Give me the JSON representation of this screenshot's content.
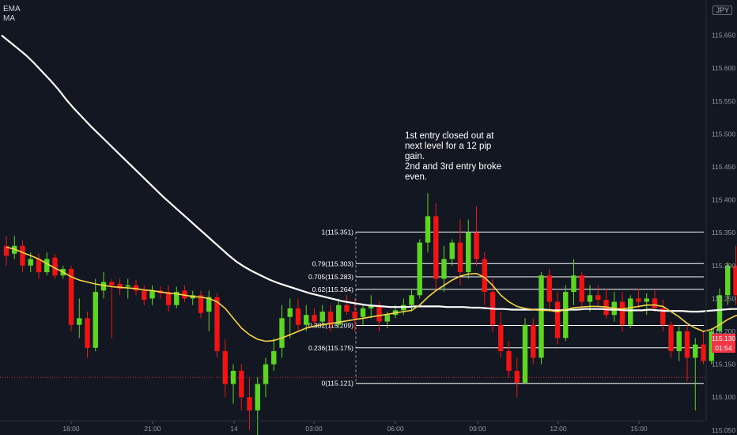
{
  "legend": {
    "ema_label": "EMA",
    "ma_label": "MA"
  },
  "currency": "JPY",
  "annotation": {
    "lines": [
      "1st entry closed out at",
      "next level for a 12 pip",
      "gain.",
      "2nd and 3rd entry broke",
      "even."
    ]
  },
  "price_tag": {
    "price": "115.130",
    "countdown": "01:54",
    "color": "#f23645"
  },
  "colors": {
    "background": "#131722",
    "up": "#5cd623",
    "down": "#f01515",
    "ema": "#ffffff",
    "ma": "#f5d547",
    "fib": "#ffffff"
  },
  "chart_data": {
    "type": "candlestick",
    "x_axis": {
      "ticks": [
        "18:00",
        "21:00",
        "14",
        "03:00",
        "06:00",
        "09:00",
        "12:00",
        "15:00"
      ]
    },
    "y_axis": {
      "range": [
        115.0,
        115.7
      ],
      "ticks": [
        "115.050",
        "115.100",
        "115.150",
        "115.200",
        "115.250",
        "115.300",
        "115.350",
        "115.400",
        "115.450",
        "115.500",
        "115.550",
        "115.600",
        "115.650"
      ]
    },
    "fib_levels": [
      {
        "ratio": "1",
        "price": 115.351,
        "label": "1(115.351)"
      },
      {
        "ratio": "0.79",
        "price": 115.303,
        "label": "0.79(115.303)"
      },
      {
        "ratio": "0.705",
        "price": 115.283,
        "label": "0.705(115.283)"
      },
      {
        "ratio": "0.62",
        "price": 115.264,
        "label": "0.62(115.264)"
      },
      {
        "ratio": "0.382",
        "price": 115.209,
        "label": "0.382(115.209)"
      },
      {
        "ratio": "0.236",
        "price": 115.175,
        "label": "0.236(115.175)"
      },
      {
        "ratio": "0",
        "price": 115.121,
        "label": "0(115.121)"
      }
    ],
    "candles": [
      {
        "o": 115.33,
        "h": 115.345,
        "l": 115.3,
        "c": 115.315
      },
      {
        "o": 115.318,
        "h": 115.345,
        "l": 115.31,
        "c": 115.33
      },
      {
        "o": 115.33,
        "h": 115.338,
        "l": 115.29,
        "c": 115.3
      },
      {
        "o": 115.3,
        "h": 115.32,
        "l": 115.29,
        "c": 115.31
      },
      {
        "o": 115.31,
        "h": 115.318,
        "l": 115.28,
        "c": 115.29
      },
      {
        "o": 115.29,
        "h": 115.32,
        "l": 115.285,
        "c": 115.31
      },
      {
        "o": 115.312,
        "h": 115.318,
        "l": 115.28,
        "c": 115.285
      },
      {
        "o": 115.285,
        "h": 115.3,
        "l": 115.28,
        "c": 115.295
      },
      {
        "o": 115.295,
        "h": 115.3,
        "l": 115.2,
        "c": 115.21
      },
      {
        "o": 115.21,
        "h": 115.25,
        "l": 115.19,
        "c": 115.22
      },
      {
        "o": 115.22,
        "h": 115.23,
        "l": 115.16,
        "c": 115.175
      },
      {
        "o": 115.175,
        "h": 115.28,
        "l": 115.17,
        "c": 115.26
      },
      {
        "o": 115.262,
        "h": 115.29,
        "l": 115.25,
        "c": 115.275
      },
      {
        "o": 115.275,
        "h": 115.28,
        "l": 115.19,
        "c": 115.27
      },
      {
        "o": 115.272,
        "h": 115.28,
        "l": 115.255,
        "c": 115.265
      },
      {
        "o": 115.268,
        "h": 115.28,
        "l": 115.25,
        "c": 115.27
      },
      {
        "o": 115.27,
        "h": 115.278,
        "l": 115.255,
        "c": 115.262
      },
      {
        "o": 115.262,
        "h": 115.27,
        "l": 115.24,
        "c": 115.248
      },
      {
        "o": 115.25,
        "h": 115.27,
        "l": 115.24,
        "c": 115.262
      },
      {
        "o": 115.262,
        "h": 115.268,
        "l": 115.25,
        "c": 115.258
      },
      {
        "o": 115.26,
        "h": 115.27,
        "l": 115.23,
        "c": 115.24
      },
      {
        "o": 115.24,
        "h": 115.268,
        "l": 115.235,
        "c": 115.26
      },
      {
        "o": 115.262,
        "h": 115.27,
        "l": 115.245,
        "c": 115.25
      },
      {
        "o": 115.25,
        "h": 115.262,
        "l": 115.24,
        "c": 115.255
      },
      {
        "o": 115.255,
        "h": 115.262,
        "l": 115.22,
        "c": 115.228
      },
      {
        "o": 115.23,
        "h": 115.262,
        "l": 115.2,
        "c": 115.252
      },
      {
        "o": 115.252,
        "h": 115.258,
        "l": 115.16,
        "c": 115.17
      },
      {
        "o": 115.17,
        "h": 115.188,
        "l": 115.1,
        "c": 115.12
      },
      {
        "o": 115.12,
        "h": 115.15,
        "l": 115.09,
        "c": 115.14
      },
      {
        "o": 115.14,
        "h": 115.15,
        "l": 115.08,
        "c": 115.1
      },
      {
        "o": 115.1,
        "h": 115.13,
        "l": 115.05,
        "c": 115.08
      },
      {
        "o": 115.08,
        "h": 115.13,
        "l": 115.04,
        "c": 115.12
      },
      {
        "o": 115.12,
        "h": 115.16,
        "l": 115.1,
        "c": 115.15
      },
      {
        "o": 115.15,
        "h": 115.19,
        "l": 115.14,
        "c": 115.17
      },
      {
        "o": 115.175,
        "h": 115.24,
        "l": 115.16,
        "c": 115.22
      },
      {
        "o": 115.222,
        "h": 115.25,
        "l": 115.19,
        "c": 115.235
      },
      {
        "o": 115.235,
        "h": 115.25,
        "l": 115.2,
        "c": 115.21
      },
      {
        "o": 115.21,
        "h": 115.24,
        "l": 115.2,
        "c": 115.225
      },
      {
        "o": 115.225,
        "h": 115.235,
        "l": 115.21,
        "c": 115.215
      },
      {
        "o": 115.215,
        "h": 115.24,
        "l": 115.21,
        "c": 115.23
      },
      {
        "o": 115.23,
        "h": 115.24,
        "l": 115.2,
        "c": 115.21
      },
      {
        "o": 115.21,
        "h": 115.25,
        "l": 115.205,
        "c": 115.24
      },
      {
        "o": 115.24,
        "h": 115.255,
        "l": 115.225,
        "c": 115.23
      },
      {
        "o": 115.23,
        "h": 115.25,
        "l": 115.2,
        "c": 115.22
      },
      {
        "o": 115.222,
        "h": 115.24,
        "l": 115.21,
        "c": 115.235
      },
      {
        "o": 115.235,
        "h": 115.255,
        "l": 115.22,
        "c": 115.24
      },
      {
        "o": 115.24,
        "h": 115.245,
        "l": 115.2,
        "c": 115.215
      },
      {
        "o": 115.215,
        "h": 115.23,
        "l": 115.205,
        "c": 115.225
      },
      {
        "o": 115.225,
        "h": 115.24,
        "l": 115.22,
        "c": 115.232
      },
      {
        "o": 115.232,
        "h": 115.25,
        "l": 115.225,
        "c": 115.24
      },
      {
        "o": 115.24,
        "h": 115.265,
        "l": 115.23,
        "c": 115.255
      },
      {
        "o": 115.255,
        "h": 115.34,
        "l": 115.25,
        "c": 115.335
      },
      {
        "o": 115.335,
        "h": 115.41,
        "l": 115.32,
        "c": 115.375
      },
      {
        "o": 115.375,
        "h": 115.395,
        "l": 115.26,
        "c": 115.28
      },
      {
        "o": 115.28,
        "h": 115.33,
        "l": 115.26,
        "c": 115.31
      },
      {
        "o": 115.31,
        "h": 115.34,
        "l": 115.3,
        "c": 115.335
      },
      {
        "o": 115.335,
        "h": 115.37,
        "l": 115.27,
        "c": 115.29
      },
      {
        "o": 115.29,
        "h": 115.37,
        "l": 115.28,
        "c": 115.35
      },
      {
        "o": 115.35,
        "h": 115.39,
        "l": 115.3,
        "c": 115.31
      },
      {
        "o": 115.31,
        "h": 115.32,
        "l": 115.24,
        "c": 115.26
      },
      {
        "o": 115.26,
        "h": 115.28,
        "l": 115.2,
        "c": 115.21
      },
      {
        "o": 115.21,
        "h": 115.23,
        "l": 115.16,
        "c": 115.17
      },
      {
        "o": 115.17,
        "h": 115.185,
        "l": 115.13,
        "c": 115.14
      },
      {
        "o": 115.14,
        "h": 115.16,
        "l": 115.1,
        "c": 115.122
      },
      {
        "o": 115.122,
        "h": 115.22,
        "l": 115.12,
        "c": 115.21
      },
      {
        "o": 115.21,
        "h": 115.22,
        "l": 115.15,
        "c": 115.16
      },
      {
        "o": 115.16,
        "h": 115.29,
        "l": 115.15,
        "c": 115.285
      },
      {
        "o": 115.285,
        "h": 115.295,
        "l": 115.23,
        "c": 115.245
      },
      {
        "o": 115.245,
        "h": 115.26,
        "l": 115.18,
        "c": 115.19
      },
      {
        "o": 115.19,
        "h": 115.27,
        "l": 115.185,
        "c": 115.26
      },
      {
        "o": 115.26,
        "h": 115.31,
        "l": 115.24,
        "c": 115.285
      },
      {
        "o": 115.285,
        "h": 115.29,
        "l": 115.235,
        "c": 115.245
      },
      {
        "o": 115.245,
        "h": 115.27,
        "l": 115.23,
        "c": 115.255
      },
      {
        "o": 115.255,
        "h": 115.27,
        "l": 115.24,
        "c": 115.248
      },
      {
        "o": 115.248,
        "h": 115.265,
        "l": 115.22,
        "c": 115.225
      },
      {
        "o": 115.225,
        "h": 115.26,
        "l": 115.215,
        "c": 115.245
      },
      {
        "o": 115.245,
        "h": 115.26,
        "l": 115.2,
        "c": 115.21
      },
      {
        "o": 115.21,
        "h": 115.255,
        "l": 115.205,
        "c": 115.25
      },
      {
        "o": 115.25,
        "h": 115.265,
        "l": 115.235,
        "c": 115.245
      },
      {
        "o": 115.245,
        "h": 115.258,
        "l": 115.225,
        "c": 115.25
      },
      {
        "o": 115.25,
        "h": 115.262,
        "l": 115.23,
        "c": 115.235
      },
      {
        "o": 115.235,
        "h": 115.248,
        "l": 115.2,
        "c": 115.21
      },
      {
        "o": 115.21,
        "h": 115.215,
        "l": 115.16,
        "c": 115.17
      },
      {
        "o": 115.17,
        "h": 115.21,
        "l": 115.155,
        "c": 115.2
      },
      {
        "o": 115.2,
        "h": 115.21,
        "l": 115.125,
        "c": 115.16
      },
      {
        "o": 115.16,
        "h": 115.19,
        "l": 115.08,
        "c": 115.18
      },
      {
        "o": 115.18,
        "h": 115.2,
        "l": 115.15,
        "c": 115.155
      },
      {
        "o": 115.155,
        "h": 115.205,
        "l": 115.15,
        "c": 115.2
      },
      {
        "o": 115.2,
        "h": 115.265,
        "l": 115.18,
        "c": 115.255
      },
      {
        "o": 115.255,
        "h": 115.305,
        "l": 115.24,
        "c": 115.3
      },
      {
        "o": 115.3,
        "h": 115.33,
        "l": 115.24,
        "c": 115.255
      },
      {
        "o": 115.255,
        "h": 115.26,
        "l": 115.21,
        "c": 115.225
      },
      {
        "o": 115.225,
        "h": 115.232,
        "l": 115.185,
        "c": 115.19
      },
      {
        "o": 115.19,
        "h": 115.205,
        "l": 115.178,
        "c": 115.185
      },
      {
        "o": 115.185,
        "h": 115.195,
        "l": 115.14,
        "c": 115.15
      },
      {
        "o": 115.15,
        "h": 115.18,
        "l": 115.115,
        "c": 115.118
      },
      {
        "o": 115.118,
        "h": 115.178,
        "l": 115.112,
        "c": 115.175
      },
      {
        "o": 115.175,
        "h": 115.18,
        "l": 115.1,
        "c": 115.13
      }
    ],
    "ema": [
      115.65,
      115.64,
      115.63,
      115.62,
      115.608,
      115.595,
      115.582,
      115.568,
      115.552,
      115.538,
      115.525,
      115.512,
      115.5,
      115.488,
      115.476,
      115.464,
      115.452,
      115.44,
      115.428,
      115.416,
      115.404,
      115.393,
      115.382,
      115.371,
      115.36,
      115.349,
      115.338,
      115.327,
      115.316,
      115.306,
      115.298,
      115.291,
      115.285,
      115.279,
      115.274,
      115.27,
      115.266,
      115.262,
      115.258,
      115.255,
      115.252,
      115.249,
      115.246,
      115.244,
      115.242,
      115.24,
      115.239,
      115.238,
      115.237,
      115.237,
      115.237,
      115.238,
      115.238,
      115.238,
      115.238,
      115.237,
      115.237,
      115.237,
      115.236,
      115.236,
      115.235,
      115.234,
      115.234,
      115.233,
      115.233,
      115.233,
      115.233,
      115.233,
      115.232,
      115.232,
      115.233,
      115.233,
      115.234,
      115.234,
      115.234,
      115.233,
      115.233,
      115.232,
      115.232,
      115.232,
      115.233,
      115.232,
      115.231,
      115.231,
      115.231,
      115.23,
      115.23,
      115.231,
      115.232,
      115.233,
      115.234,
      115.234,
      115.233,
      115.232,
      115.231,
      115.23,
      115.229,
      115.228
    ],
    "ma": [
      115.328,
      115.325,
      115.32,
      115.315,
      115.31,
      115.303,
      115.296,
      115.29,
      115.283,
      115.278,
      115.275,
      115.272,
      115.27,
      115.268,
      115.267,
      115.266,
      115.265,
      115.263,
      115.262,
      115.26,
      115.258,
      115.257,
      115.255,
      115.253,
      115.252,
      115.25,
      115.245,
      115.235,
      115.22,
      115.205,
      115.195,
      115.188,
      115.185,
      115.186,
      115.19,
      115.195,
      115.2,
      115.205,
      115.208,
      115.21,
      115.212,
      115.214,
      115.216,
      115.218,
      115.22,
      115.222,
      115.224,
      115.226,
      115.228,
      115.23,
      115.232,
      115.24,
      115.252,
      115.262,
      115.27,
      115.278,
      115.284,
      115.287,
      115.288,
      115.282,
      115.27,
      115.255,
      115.245,
      115.238,
      115.235,
      115.233,
      115.232,
      115.232,
      115.23,
      115.233,
      115.236,
      115.237,
      115.238,
      115.238,
      115.237,
      115.235,
      115.234,
      115.236,
      115.238,
      115.24,
      115.24,
      115.238,
      115.23,
      115.222,
      115.212,
      115.205,
      115.2,
      115.203,
      115.21,
      115.218,
      115.224,
      115.225,
      115.222,
      115.215,
      115.205,
      115.197,
      115.192,
      115.185
    ]
  }
}
